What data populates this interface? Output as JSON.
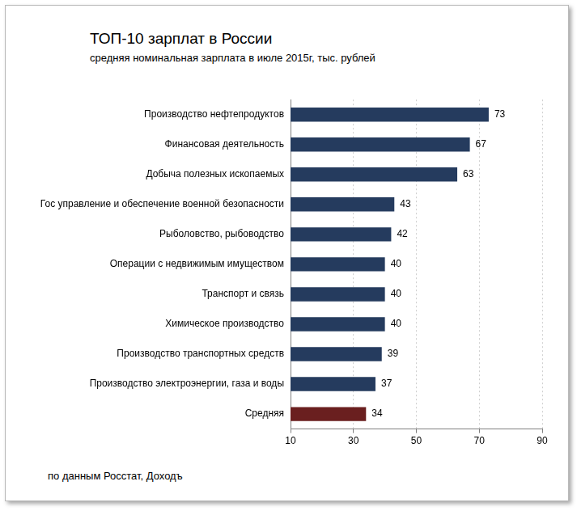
{
  "chart_data": {
    "type": "bar",
    "orientation": "horizontal",
    "title": "ТОП-10 зарплат в России",
    "subtitle": "средняя номинальная зарплата в июле 2015г, тыс. рублей",
    "annotations": [
      "по данным Росстат, Доходъ"
    ],
    "categories": [
      "Производство нефтепродуктов",
      "Финансовая деятельность",
      "Добыча полезных ископаемых",
      "Гос управление и обеспечение военной безопасности",
      "Рыболовство, рыбоводство",
      "Операции с недвижимым имуществом",
      "Транспорт и связь",
      "Химическое производство",
      "Производство транспортных средств",
      "Производство электроэнергии, газа и воды",
      "Средняя"
    ],
    "values": [
      73,
      67,
      63,
      43,
      42,
      40,
      40,
      40,
      39,
      37,
      34
    ],
    "colors": [
      "#253b5e",
      "#253b5e",
      "#253b5e",
      "#253b5e",
      "#253b5e",
      "#253b5e",
      "#253b5e",
      "#253b5e",
      "#253b5e",
      "#253b5e",
      "#6a1f1f"
    ],
    "xlim": [
      10,
      90
    ],
    "xticks": [
      10,
      30,
      50,
      70,
      90
    ],
    "grid": true,
    "data_labels": true
  }
}
